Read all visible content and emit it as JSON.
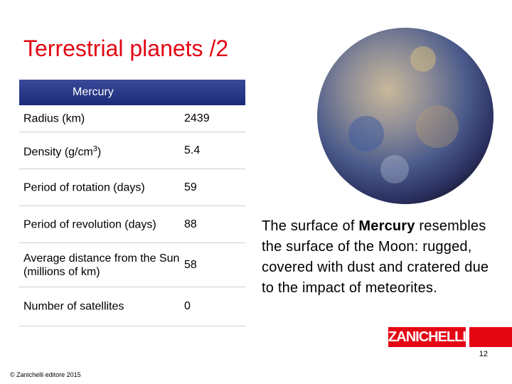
{
  "header": {
    "title": "Terrestrial planets /2"
  },
  "table": {
    "header": "Mercury",
    "rows": [
      {
        "label": "Radius (km)",
        "value": 2439
      },
      {
        "label": {
          "text": "Density (g/cm",
          "sup": "3",
          "tail": ")"
        },
        "value": 5.4
      },
      {
        "label": "Period of rotation (days)",
        "value": 59
      },
      {
        "label": "Period of revolution (days)",
        "value": 88
      },
      {
        "label": "Average distance from the Sun (millions of km)",
        "value": 58
      },
      {
        "label": "Number of satellites",
        "value": 0
      }
    ]
  },
  "description": [
    "The surface of ",
    "Mercury",
    " resembles the surface of the Moon: rugged, covered with dust and cratered due to the impact of meteorites."
  ],
  "footer": {
    "logo": "ZANICHELLI",
    "page": 12,
    "copyright": "© Zanichelli editore 2015"
  }
}
